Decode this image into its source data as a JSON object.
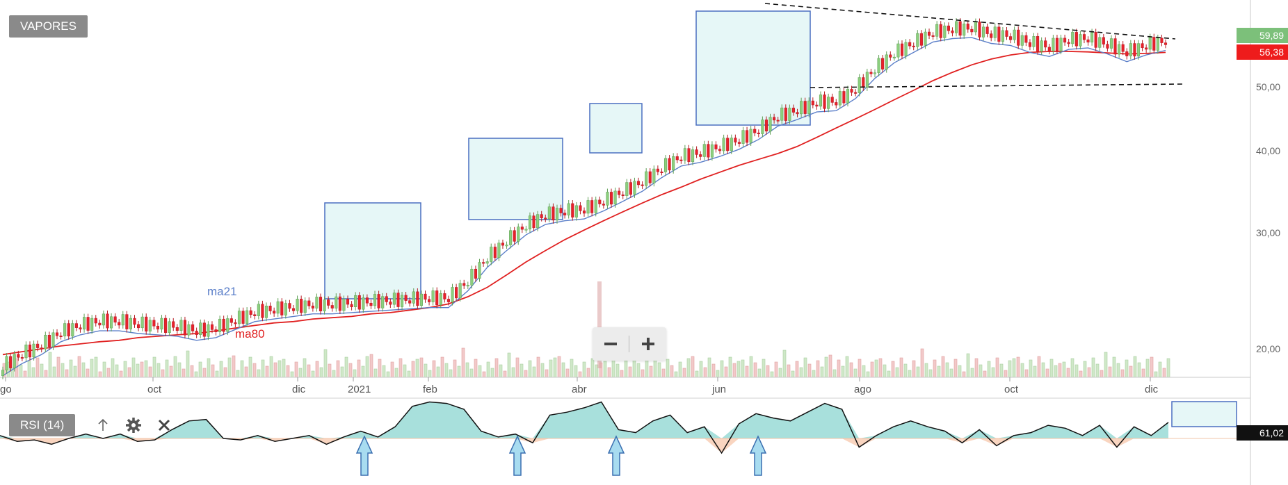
{
  "symbol": "VAPORES",
  "indicator_label": "RSI (14)",
  "chart_data": [
    {
      "type": "candlestick",
      "title": "VAPORES",
      "y_scale": "log",
      "y_ticks": [
        "20,00",
        "30,00",
        "40,00",
        "50,00"
      ],
      "y_tick_values": [
        20,
        30,
        40,
        50
      ],
      "x_ticks": [
        "go",
        "oct",
        "dic",
        "2021",
        "feb",
        "abr",
        "jun",
        "ago",
        "oct",
        "dic"
      ],
      "last_price_label": "59,89",
      "ma80_value_label": "56,38",
      "series": [
        {
          "name": "ma21",
          "color": "#5b7fc9",
          "values": [
            18.2,
            19.0,
            19.6,
            20.5,
            21.0,
            21.3,
            21.3,
            21.1,
            21.0,
            20.9,
            20.6,
            20.8,
            21.4,
            22.0,
            22.2,
            22.4,
            22.6,
            22.6,
            22.7,
            22.8,
            22.9,
            23.0,
            23.1,
            23.1,
            24.5,
            26.6,
            28.2,
            29.8,
            30.9,
            31.3,
            31.5,
            32.4,
            33.5,
            34.7,
            36.4,
            37.9,
            38.4,
            39.2,
            40.2,
            41.6,
            43.6,
            44.6,
            45.8,
            46.0,
            48.0,
            51.5,
            54.4,
            56.4,
            58.5,
            59.2,
            59.4,
            58.2,
            57.8,
            56.4,
            55.6,
            57.0,
            57.3,
            56.1,
            54.6,
            55.9,
            56.8
          ]
        },
        {
          "name": "ma80",
          "color": "#e02020",
          "values": [
            19.6,
            19.8,
            20.0,
            20.2,
            20.35,
            20.5,
            20.6,
            20.8,
            20.9,
            21.0,
            21.1,
            21.3,
            21.5,
            21.7,
            21.9,
            22.0,
            22.2,
            22.3,
            22.4,
            22.6,
            22.7,
            22.9,
            23.1,
            23.4,
            24.0,
            24.8,
            25.9,
            27.1,
            28.2,
            29.3,
            30.3,
            31.3,
            32.3,
            33.3,
            34.3,
            35.2,
            36.2,
            37.1,
            38.0,
            38.8,
            39.6,
            40.6,
            41.9,
            43.3,
            44.7,
            46.2,
            47.8,
            49.4,
            51.1,
            52.6,
            54.0,
            55.1,
            55.9,
            56.4,
            56.6,
            56.6,
            56.5,
            56.3,
            56.1,
            56.2,
            56.4
          ]
        }
      ],
      "candles_per_series_point": 5,
      "pattern": [
        1.0,
        1.04,
        0.99,
        1.03,
        1.01
      ],
      "annotations": {
        "ma_labels": [
          "ma21",
          "ma80"
        ],
        "consolidation_boxes": 5,
        "triangle": "descending-resistance-flat-support"
      }
    },
    {
      "type": "line",
      "title": "RSI (14)",
      "last_value_label": "61,02",
      "reference_level": 50,
      "values": [
        52,
        48,
        49,
        46,
        50,
        53,
        50,
        53,
        48,
        49,
        56,
        62,
        63,
        50,
        49,
        52,
        48,
        50,
        52,
        46,
        51,
        55,
        51,
        58,
        72,
        75,
        74,
        70,
        55,
        51,
        53,
        47,
        66,
        68,
        71,
        75,
        56,
        54,
        62,
        66,
        54,
        58,
        40,
        60,
        67,
        64,
        62,
        68,
        74,
        70,
        44,
        52,
        58,
        62,
        58,
        55,
        47,
        56,
        45,
        52,
        54,
        59,
        57,
        52,
        59,
        44,
        58,
        52,
        61
      ]
    }
  ]
}
